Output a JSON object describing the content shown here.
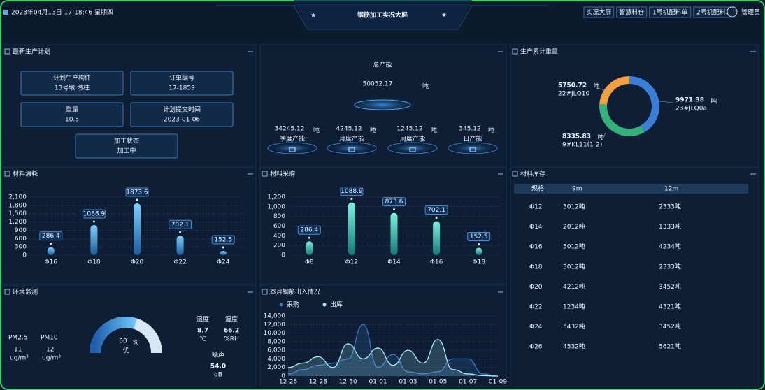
{
  "header": {
    "datetime": "2023年04月13日 17:18:46 星期四",
    "title": "钢筋加工实况大屏",
    "nav": [
      "实况大屏",
      "智慧料仓",
      "1号机配料单",
      "2号机配料单"
    ],
    "user": "管理员"
  },
  "plan": {
    "title": "最新生产计划",
    "fields": [
      {
        "label": "计划生产构件",
        "value": "13号墩 墩柱"
      },
      {
        "label": "订单编号",
        "value": "17-1859"
      },
      {
        "label": "重量",
        "value": "10.5"
      },
      {
        "label": "计划提交时间",
        "value": "2023-01-06"
      },
      {
        "label": "加工状态",
        "value": "加工中"
      }
    ]
  },
  "capacity": {
    "label": "总产能",
    "total": "50052.17",
    "unit": "吨",
    "items": [
      {
        "value": "34245.12",
        "label": "季度产能"
      },
      {
        "value": "4245.12",
        "label": "月度产能"
      },
      {
        "value": "1245.12",
        "label": "周度产能"
      },
      {
        "value": "345.12",
        "label": "日产能"
      }
    ]
  },
  "chart_data": [
    {
      "type": "pie",
      "title": "生产累计重量",
      "unit": "吨",
      "categories": [
        "23#JLQ0a",
        "9#KL11(1-2)",
        "22#JLQ10"
      ],
      "values": [
        9971.38,
        8335.83,
        5750.72
      ],
      "colors": [
        "#3a7fd5",
        "#34b27a",
        "#f0a040"
      ]
    },
    {
      "type": "bar",
      "title": "材料消耗",
      "categories": [
        "Φ16",
        "Φ18",
        "Φ20",
        "Φ22",
        "Φ24"
      ],
      "values": [
        286.4,
        1088.9,
        1873.6,
        702.1,
        152.5
      ],
      "color": "#4aa3e8",
      "ylim": [
        0,
        2100
      ],
      "yticks": [
        0,
        300,
        600,
        900,
        {
          "value": 1200,
          "label": "1,200"
        },
        {
          "value": 1500,
          "label": "1,500"
        },
        {
          "value": 1800,
          "label": "1,800"
        },
        {
          "value": 2100,
          "label": "2,100"
        }
      ],
      "grid": true
    },
    {
      "type": "bar",
      "title": "材料采购",
      "categories": [
        "Φ8",
        "Φ12",
        "Φ14",
        "Φ16",
        "Φ18"
      ],
      "values": [
        286.4,
        1088.9,
        873.6,
        702.1,
        152.5
      ],
      "color": "#3ed0c0",
      "ylim": [
        0,
        1200
      ],
      "yticks": [
        0,
        200,
        400,
        600,
        800,
        {
          "value": 1000,
          "label": "1,000"
        },
        {
          "value": 1200,
          "label": "1,200"
        }
      ],
      "grid": true
    },
    {
      "type": "line",
      "title": "本月钢筋出入情况",
      "categories": [
        "12-26",
        null,
        "12-28",
        null,
        "12-30",
        null,
        "01-01",
        null,
        "01-03",
        null,
        "01-05",
        null,
        "01-07",
        null,
        "01-09"
      ],
      "series": [
        {
          "name": "采购",
          "color": "#3d78c8",
          "values": [
            500,
            1500,
            2500,
            3000,
            4000,
            12000,
            2000,
            5000,
            1000,
            500,
            1000,
            4000,
            4000,
            500,
            0
          ]
        },
        {
          "name": "出库",
          "color": "#a8eef5",
          "values": [
            2000,
            3000,
            4500,
            2000,
            7500,
            4000,
            6500,
            2500,
            6000,
            3000,
            8500,
            1500,
            500,
            100,
            0
          ]
        }
      ],
      "ylim": [
        0,
        14000
      ],
      "yticks": [
        0,
        {
          "value": 2000,
          "label": "2,000"
        },
        {
          "value": 4000,
          "label": "4,000"
        },
        {
          "value": 6000,
          "label": "6,000"
        },
        {
          "value": 8000,
          "label": "8,000"
        },
        {
          "value": 10000,
          "label": "10,000"
        },
        {
          "value": 12000,
          "label": "12,000"
        },
        {
          "value": 14000,
          "label": "14,000"
        }
      ],
      "grid": true
    }
  ],
  "inventory": {
    "title": "材料库存",
    "columns": [
      "规格",
      "9m",
      "12m"
    ],
    "rows": [
      [
        "Φ12",
        "3012吨",
        "2333吨"
      ],
      [
        "Φ14",
        "2012吨",
        "1333吨"
      ],
      [
        "Φ16",
        "5012吨",
        "4234吨"
      ],
      [
        "Φ18",
        "3012吨",
        "2333吨"
      ],
      [
        "Φ20",
        "4212吨",
        "3452吨"
      ],
      [
        "Φ22",
        "1234吨",
        "4321吨"
      ],
      [
        "Φ24",
        "5432吨",
        "3452吨"
      ],
      [
        "Φ26",
        "4532吨",
        "5621吨"
      ]
    ]
  },
  "environment": {
    "title": "环境监测",
    "pm25": {
      "label": "PM2.5",
      "value": "11",
      "unit": "ug/m³"
    },
    "pm10": {
      "label": "PM10",
      "value": "12",
      "unit": "ug/m³"
    },
    "gauge": {
      "value": 60,
      "range": [
        0,
        100
      ],
      "unit": "%",
      "grade": "优"
    },
    "temperature": {
      "label": "温度",
      "value": "8.7",
      "unit": "℃"
    },
    "humidity": {
      "label": "湿度",
      "value": "66.2",
      "unit": "%RH"
    },
    "noise": {
      "label": "噪声",
      "value": "54.0",
      "unit": "dB"
    }
  }
}
